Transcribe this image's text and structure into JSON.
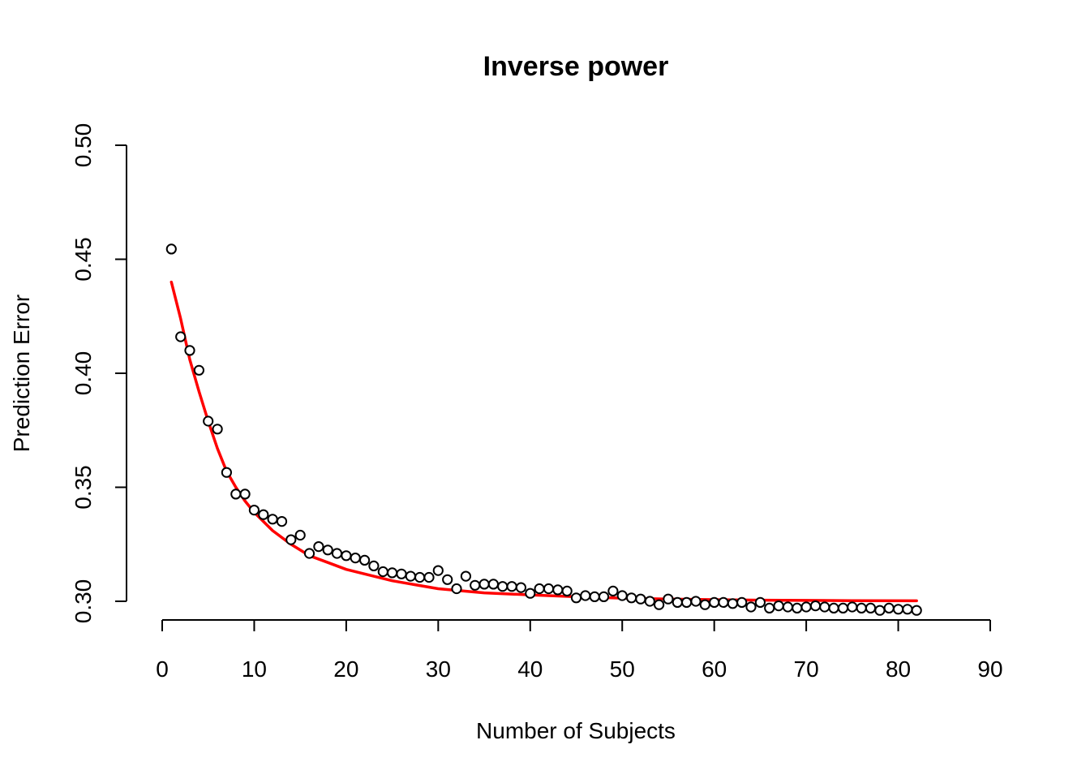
{
  "chart_data": {
    "type": "scatter",
    "title": "Inverse power",
    "xlabel": "Number of Subjects",
    "ylabel": "Prediction Error",
    "xlim": [
      0,
      90
    ],
    "ylim": [
      0.3,
      0.5
    ],
    "x_ticks": [
      "0",
      "10",
      "20",
      "30",
      "40",
      "50",
      "60",
      "70",
      "80",
      "90"
    ],
    "y_ticks": [
      "0.30",
      "0.35",
      "0.40",
      "0.45",
      "0.50"
    ],
    "grid": false,
    "points": {
      "x": [
        1,
        2,
        3,
        4,
        5,
        6,
        7,
        8,
        9,
        10,
        11,
        12,
        13,
        14,
        15,
        16,
        17,
        18,
        19,
        20,
        21,
        22,
        23,
        24,
        25,
        26,
        27,
        28,
        29,
        30,
        31,
        32,
        33,
        34,
        35,
        36,
        37,
        38,
        39,
        40,
        41,
        42,
        43,
        44,
        45,
        46,
        47,
        48,
        49,
        50,
        51,
        52,
        53,
        54,
        55,
        56,
        57,
        58,
        59,
        60,
        61,
        62,
        63,
        64,
        65,
        66,
        67,
        68,
        69,
        70,
        71,
        72,
        73,
        74,
        75,
        76,
        77,
        78,
        79,
        80,
        81,
        82
      ],
      "y": [
        0.4545,
        0.416,
        0.41,
        0.4013,
        0.379,
        0.3755,
        0.3565,
        0.347,
        0.347,
        0.34,
        0.338,
        0.336,
        0.335,
        0.327,
        0.329,
        0.321,
        0.324,
        0.3225,
        0.321,
        0.32,
        0.319,
        0.318,
        0.3155,
        0.313,
        0.3125,
        0.312,
        0.311,
        0.3105,
        0.3105,
        0.3135,
        0.3095,
        0.3055,
        0.311,
        0.307,
        0.3075,
        0.3075,
        0.3065,
        0.3065,
        0.306,
        0.3035,
        0.3055,
        0.3055,
        0.305,
        0.3045,
        0.3015,
        0.3025,
        0.302,
        0.302,
        0.3045,
        0.3025,
        0.3015,
        0.301,
        0.3,
        0.2985,
        0.301,
        0.2995,
        0.2995,
        0.3,
        0.2985,
        0.2995,
        0.2995,
        0.299,
        0.2995,
        0.2975,
        0.2995,
        0.297,
        0.298,
        0.2975,
        0.297,
        0.2975,
        0.298,
        0.2975,
        0.297,
        0.297,
        0.2975,
        0.297,
        0.297,
        0.296,
        0.297,
        0.2965,
        0.2965,
        0.296
      ]
    },
    "fit": {
      "color": "#ff0000",
      "x": [
        1,
        2,
        3,
        4,
        5,
        6,
        7,
        8,
        9,
        10,
        12,
        14,
        16,
        18,
        20,
        22,
        25,
        30,
        35,
        40,
        45,
        50,
        55,
        60,
        65,
        70,
        75,
        82
      ],
      "y": [
        0.44,
        0.424,
        0.406,
        0.392,
        0.379,
        0.367,
        0.357,
        0.35,
        0.344,
        0.339,
        0.331,
        0.325,
        0.32,
        0.317,
        0.314,
        0.312,
        0.309,
        0.3055,
        0.3037,
        0.3028,
        0.302,
        0.3014,
        0.301,
        0.3007,
        0.3005,
        0.3004,
        0.3003,
        0.3002
      ]
    }
  }
}
